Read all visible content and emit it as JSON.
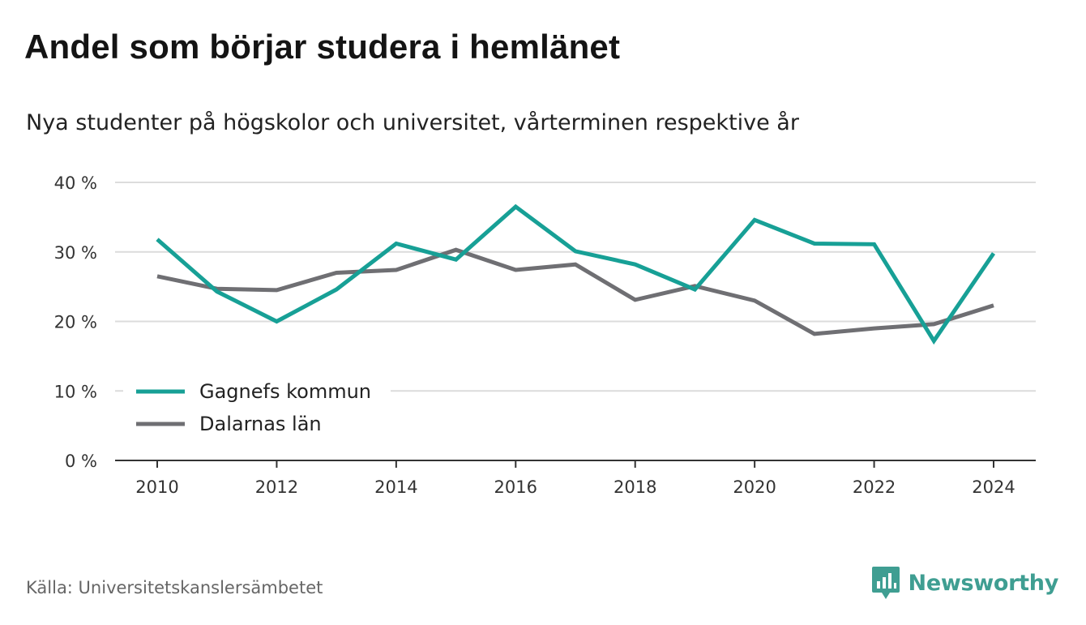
{
  "header": {
    "title": "Andel som börjar studera i hemlänet",
    "subtitle": "Nya studenter på högskolor och universitet, vårterminen respektive år"
  },
  "footer": {
    "source": "Källa: Universitetskanslersämbetet",
    "brand": "Newsworthy",
    "brand_icon": "bar-chart-speech-bubble-icon",
    "brand_color": "#3f9e92"
  },
  "chart_data": {
    "type": "line",
    "title": "Andel som börjar studera i hemlänet",
    "subtitle": "Nya studenter på högskolor och universitet, vårterminen respektive år",
    "xlabel": "",
    "ylabel": "",
    "x": [
      2010,
      2011,
      2012,
      2013,
      2014,
      2015,
      2016,
      2017,
      2018,
      2019,
      2020,
      2021,
      2022,
      2023,
      2024
    ],
    "x_ticks": [
      "2010",
      "2012",
      "2014",
      "2016",
      "2018",
      "2020",
      "2022",
      "2024"
    ],
    "ylim": [
      0,
      40
    ],
    "y_ticks": [
      "0 %",
      "10 %",
      "20 %",
      "30 %",
      "40 %"
    ],
    "grid": true,
    "legend_position": "bottom-left",
    "series": [
      {
        "name": "Gagnefs kommun",
        "color": "#17a096",
        "values": [
          31.8,
          24.3,
          20.0,
          24.6,
          31.2,
          28.9,
          36.5,
          30.1,
          28.2,
          24.6,
          34.6,
          31.2,
          31.1,
          17.2,
          29.8
        ]
      },
      {
        "name": "Dalarnas län",
        "color": "#6f6f73",
        "values": [
          26.5,
          24.7,
          24.5,
          27.0,
          27.4,
          30.3,
          27.4,
          28.2,
          23.1,
          25.1,
          23.0,
          18.2,
          19.0,
          19.6,
          22.3
        ]
      }
    ]
  }
}
